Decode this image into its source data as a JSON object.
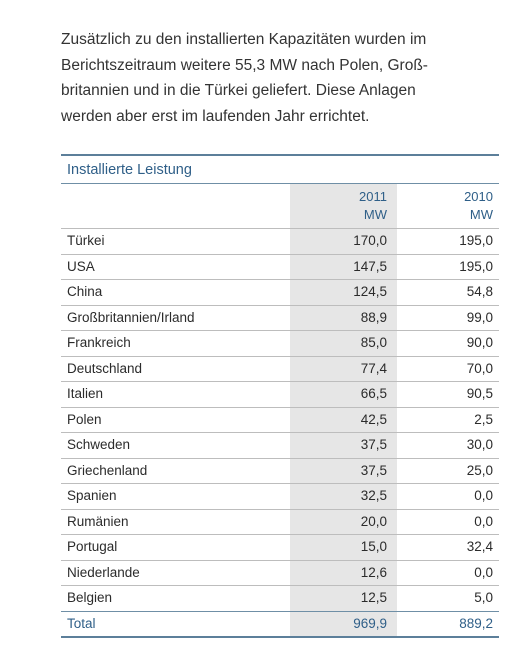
{
  "intro": {
    "lines": [
      "Zusätzlich zu den installierten Kapazitäten wurden im",
      "Berichtszeitraum weitere 55,3 MW nach Polen, Groß-",
      "britannien und in die Türkei geliefert. Diese Anlagen",
      "werden aber erst im laufenden Jahr errichtet."
    ]
  },
  "table": {
    "title": "Installierte Leistung",
    "columns": [
      {
        "year": "2011",
        "unit": "MW"
      },
      {
        "year": "2010",
        "unit": "MW"
      }
    ],
    "rows": [
      {
        "name": "Türkei",
        "v2011": "170,0",
        "v2010": "195,0"
      },
      {
        "name": "USA",
        "v2011": "147,5",
        "v2010": "195,0"
      },
      {
        "name": "China",
        "v2011": "124,5",
        "v2010": "54,8"
      },
      {
        "name": "Großbritannien/Irland",
        "v2011": "88,9",
        "v2010": "99,0"
      },
      {
        "name": "Frankreich",
        "v2011": "85,0",
        "v2010": "90,0"
      },
      {
        "name": "Deutschland",
        "v2011": "77,4",
        "v2010": "70,0"
      },
      {
        "name": "Italien",
        "v2011": "66,5",
        "v2010": "90,5"
      },
      {
        "name": "Polen",
        "v2011": "42,5",
        "v2010": "2,5"
      },
      {
        "name": "Schweden",
        "v2011": "37,5",
        "v2010": "30,0"
      },
      {
        "name": "Griechenland",
        "v2011": "37,5",
        "v2010": "25,0"
      },
      {
        "name": "Spanien",
        "v2011": "32,5",
        "v2010": "0,0"
      },
      {
        "name": "Rumänien",
        "v2011": "20,0",
        "v2010": "0,0"
      },
      {
        "name": "Portugal",
        "v2011": "15,0",
        "v2010": "32,4"
      },
      {
        "name": "Niederlande",
        "v2011": "12,6",
        "v2010": "0,0"
      },
      {
        "name": "Belgien",
        "v2011": "12,5",
        "v2010": "5,0"
      }
    ],
    "total": {
      "name": "Total",
      "v2011": "969,9",
      "v2010": "889,2"
    }
  },
  "colors": {
    "accent": "#2f5f88",
    "rule": "#5c7f9a",
    "shade": "#e6e6e6"
  }
}
